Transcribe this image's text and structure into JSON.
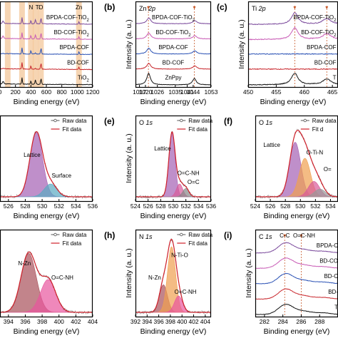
{
  "chart_data": [
    {
      "panel": "a",
      "type": "line",
      "xlabel": "Binding energy (eV)",
      "ticks": [
        "0",
        "200",
        "400",
        "600",
        "800",
        "1000",
        "1200"
      ],
      "xlim": [
        0,
        1200
      ],
      "peak_labels": [
        "N",
        "Ti",
        "O",
        "Zn"
      ],
      "series_labels": [
        "BPDA-COF-TiO2",
        "BD-COF-TiO2",
        "BPDA-COF",
        "BD-COF",
        "TiO2"
      ],
      "colors": [
        "#7b4a9c",
        "#c85ab5",
        "#2b52b5",
        "#c8242a",
        "#111111"
      ],
      "highlight_color": "#f3c79a",
      "highlight_centers_ev": [
        100,
        285,
        400,
        460,
        530,
        1022
      ]
    },
    {
      "panel": "b",
      "type": "line",
      "core_level": "Zn 2p",
      "xlabel": "Binding energy (eV)",
      "ylabel": "Intensity (a. u.)",
      "ticks": [
        "1017",
        "1020",
        "1026",
        "1035",
        "1041",
        "1044",
        "1053"
      ],
      "xlim": [
        1015,
        1053
      ],
      "peaks_ev": [
        1021.5,
        1044.6
      ],
      "series_labels": [
        "BPDA-COF-TiO2",
        "BD-COF-TiO2",
        "BPDA-COF",
        "BD-COF",
        "ZnPpy"
      ],
      "colors": [
        "#7b4a9c",
        "#c85ab5",
        "#2b52b5",
        "#c8242a",
        "#111111"
      ]
    },
    {
      "panel": "c",
      "type": "line",
      "core_level": "Ti 2p",
      "xlabel": "Binding energy (eV)",
      "ylabel": "Intensity (a. u.)",
      "ticks": [
        "450",
        "455",
        "460",
        "465"
      ],
      "xlim": [
        450,
        466
      ],
      "peaks_ev": [
        458.3,
        464.0
      ],
      "series_labels": [
        "BPDA-COF-TiO2",
        "BD-COF-TiO2",
        "BPDA-COF",
        "BD-COF",
        "T"
      ],
      "colors": [
        "#7b4a9c",
        "#c85ab5",
        "#2b52b5",
        "#c8242a",
        "#111111"
      ]
    },
    {
      "panel": "d",
      "type": "area",
      "xlabel": "Binding energy (eV)",
      "ticks": [
        "526",
        "528",
        "530",
        "532",
        "534",
        "536"
      ],
      "xlim": [
        525,
        536
      ],
      "legend": [
        "Raw data",
        "Fit data"
      ],
      "components": [
        {
          "name": "Lattice",
          "center": 529.3,
          "height": 1.0,
          "color": "#a45fb4"
        },
        {
          "name": "Surface",
          "center": 531.0,
          "height": 0.2,
          "color": "#5aa9c2"
        }
      ]
    },
    {
      "panel": "e",
      "type": "area",
      "core_level": "O 1s",
      "xlabel": "Binding energy (eV)",
      "ylabel": "Intensity (a. u.)",
      "ticks": [
        "524",
        "526",
        "528",
        "530",
        "532",
        "534",
        "536"
      ],
      "xlim": [
        524,
        536
      ],
      "legend": [
        "Raw data",
        "Fit data"
      ],
      "components": [
        {
          "name": "Lattice",
          "center": 529.8,
          "height": 1.0,
          "color": "#a45fb4"
        },
        {
          "name": "O=C-NH",
          "center": 531.0,
          "height": 0.2,
          "color": "#d85a9a"
        },
        {
          "name": "O=C",
          "center": 532.0,
          "height": 0.13,
          "color": "#888888"
        }
      ]
    },
    {
      "panel": "f",
      "type": "area",
      "core_level": "O 1s",
      "xlabel": "Binding energy (eV)",
      "ticks": [
        "524",
        "526",
        "528",
        "530",
        "532",
        "534"
      ],
      "xlim": [
        524,
        535
      ],
      "legend": [
        "Raw data",
        "Fit d"
      ],
      "components": [
        {
          "name": "Lattice",
          "center": 529.3,
          "height": 0.85,
          "color": "#a45fb4"
        },
        {
          "name": "O-Ti-N",
          "center": 530.6,
          "height": 0.6,
          "color": "#f0a050"
        },
        {
          "name": "O=",
          "center": 531.8,
          "height": 0.24,
          "color": "#d85a9a"
        },
        {
          "name": "",
          "center": 532.6,
          "height": 0.12,
          "color": "#999999"
        }
      ]
    },
    {
      "panel": "g",
      "type": "area",
      "xlabel": "Binding energy (eV)",
      "ticks": [
        "394",
        "396",
        "398",
        "400",
        "402",
        "404"
      ],
      "xlim": [
        393,
        404
      ],
      "legend": [
        "Raw data",
        "Fit data"
      ],
      "components": [
        {
          "name": "N-Zn",
          "center": 396.4,
          "height": 0.9,
          "color": "#a8505a"
        },
        {
          "name": "O=C-NH",
          "center": 398.7,
          "height": 0.5,
          "color": "#e8559e"
        }
      ]
    },
    {
      "panel": "h",
      "type": "area",
      "core_level": "N 1s",
      "xlabel": "Binding energy (eV)",
      "ylabel": "Intensity (a. u.)",
      "ticks": [
        "392",
        "394",
        "396",
        "398",
        "400",
        "402",
        "404"
      ],
      "xlim": [
        392,
        405
      ],
      "legend": [
        "Raw data",
        "Fit data"
      ],
      "components": [
        {
          "name": "N-Zn",
          "center": 396.8,
          "height": 0.42,
          "color": "#a8505a"
        },
        {
          "name": "N-Ti-O",
          "center": 398.2,
          "height": 1.0,
          "color": "#f0a050"
        },
        {
          "name": "O=C-NH",
          "center": 399.4,
          "height": 0.25,
          "color": "#e8559e"
        }
      ]
    },
    {
      "panel": "i",
      "type": "line",
      "core_level": "C 1s",
      "xlabel": "Binding energy (eV)",
      "ylabel": "Intensity (a. u.)",
      "ticks": [
        "282",
        "284",
        "286",
        "288"
      ],
      "xlim": [
        281,
        290
      ],
      "peak_labels": [
        "C-C",
        "O=C-NH"
      ],
      "peaks_ev": [
        284.2,
        286.0
      ],
      "series_labels": [
        "BPDA-C",
        "BD-CO",
        "BD-C",
        "BD-",
        "T"
      ],
      "colors": [
        "#7b4a9c",
        "#c85ab5",
        "#2b52b5",
        "#c8242a",
        "#111111"
      ]
    }
  ]
}
